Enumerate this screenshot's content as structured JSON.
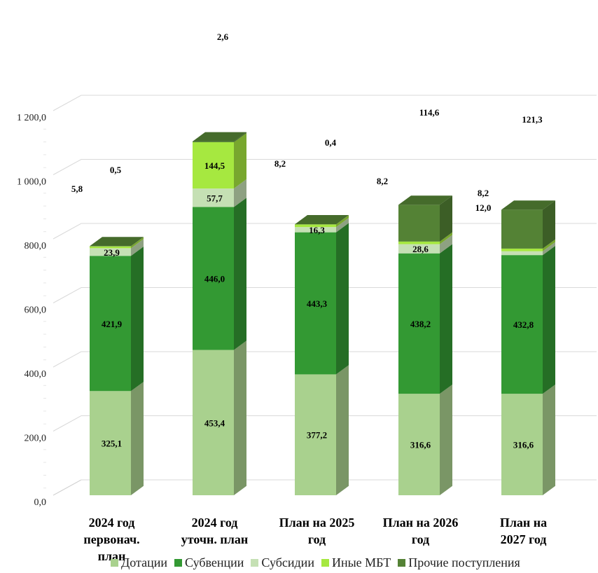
{
  "chart_data": {
    "type": "bar",
    "stacked": true,
    "three_d": true,
    "categories": [
      [
        "2024 год",
        "первонач.",
        "план"
      ],
      [
        "2024 год",
        "уточн. план"
      ],
      [
        "План на 2025",
        "год"
      ],
      [
        "План на 2026",
        "год"
      ],
      [
        "План на",
        "2027 год"
      ]
    ],
    "series": [
      {
        "name": "Дотации",
        "color": "#a9d18e",
        "values": [
          325.1,
          453.4,
          377.2,
          316.6,
          316.6
        ],
        "labels": [
          "325,1",
          "453,4",
          "377,2",
          "316,6",
          "316,6"
        ]
      },
      {
        "name": "Субвенции",
        "color": "#339933",
        "values": [
          421.9,
          446.0,
          443.3,
          438.2,
          432.8
        ],
        "labels": [
          "421,9",
          "446,0",
          "443,3",
          "438,2",
          "432,8"
        ]
      },
      {
        "name": "Субсидии",
        "color": "#c5e0b4",
        "values": [
          23.9,
          57.7,
          16.3,
          28.6,
          12.0
        ],
        "labels": [
          "23,9",
          "57,7",
          "16,3",
          "28,6",
          "12,0"
        ]
      },
      {
        "name": "Иные МБТ",
        "color": "#a6e840",
        "values": [
          5.8,
          144.5,
          8.2,
          8.2,
          8.2
        ],
        "labels": [
          "5,8",
          "144,5",
          "8,2",
          "8,2",
          "8,2"
        ]
      },
      {
        "name": "Прочие поступления",
        "color": "#548235",
        "values": [
          0.5,
          2.6,
          0.4,
          114.6,
          121.3
        ],
        "labels": [
          "0,5",
          "2,6",
          "0,4",
          "114,6",
          "121,3"
        ]
      }
    ],
    "y_ticks": [
      "0,0",
      "200,0",
      "400,0",
      "600,0",
      "800,0",
      "1 000,0",
      "1 200,0"
    ],
    "ylim": [
      0,
      1200
    ],
    "grid": true,
    "legend_position": "bottom"
  }
}
